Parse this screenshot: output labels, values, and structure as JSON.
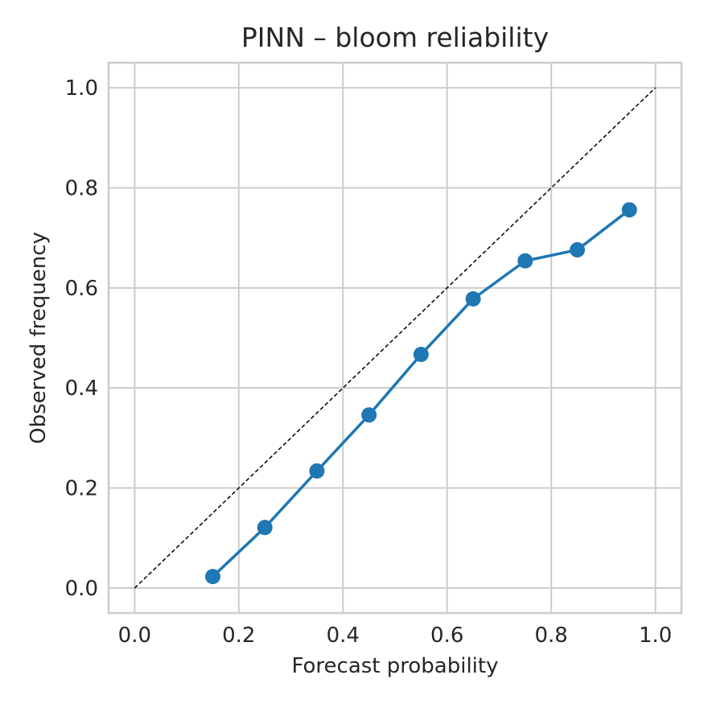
{
  "chart_data": {
    "type": "line",
    "title": "PINN – bloom reliability",
    "xlabel": "Forecast probability",
    "ylabel": "Observed frequency",
    "xlim": [
      -0.05,
      1.05
    ],
    "ylim": [
      -0.05,
      1.05
    ],
    "xticks": [
      0.0,
      0.2,
      0.4,
      0.6,
      0.8,
      1.0
    ],
    "yticks": [
      0.0,
      0.2,
      0.4,
      0.6,
      0.8,
      1.0
    ],
    "xtick_labels": [
      "0.0",
      "0.2",
      "0.4",
      "0.6",
      "0.8",
      "1.0"
    ],
    "ytick_labels": [
      "0.0",
      "0.2",
      "0.4",
      "0.6",
      "0.8",
      "1.0"
    ],
    "grid": true,
    "reference_line": {
      "style": "dashed",
      "color": "#000000",
      "x": [
        0.0,
        1.0
      ],
      "y": [
        0.0,
        1.0
      ]
    },
    "series": [
      {
        "color": "#1f77b4",
        "marker": "circle",
        "x": [
          0.15,
          0.25,
          0.35,
          0.45,
          0.55,
          0.65,
          0.75,
          0.85,
          0.95
        ],
        "y": [
          0.023,
          0.121,
          0.234,
          0.346,
          0.467,
          0.578,
          0.654,
          0.676,
          0.756
        ]
      }
    ]
  }
}
